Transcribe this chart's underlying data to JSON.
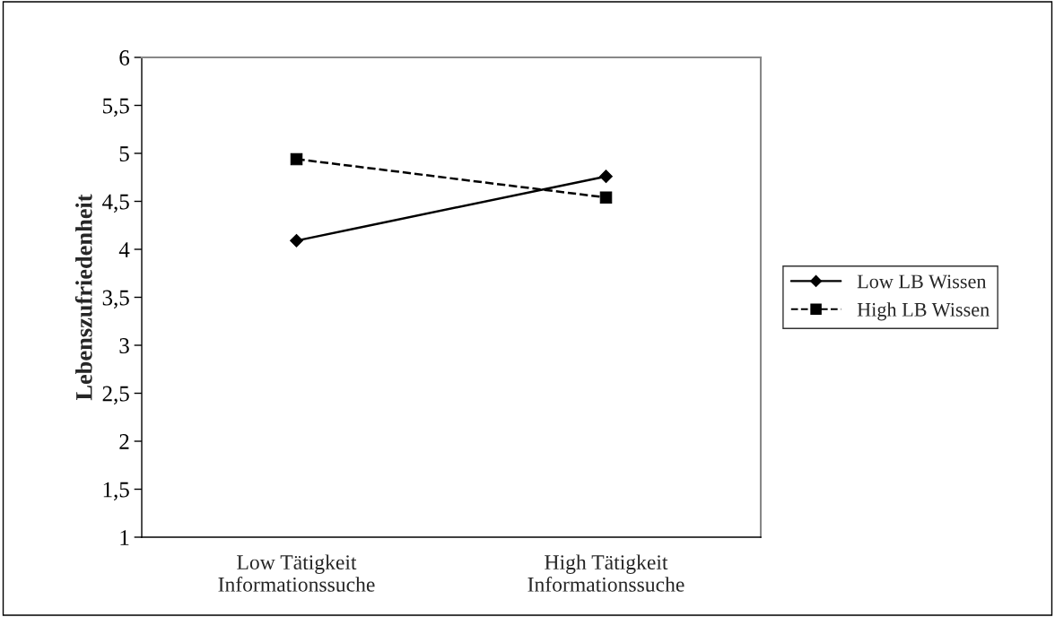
{
  "chart_data": {
    "type": "line",
    "ylabel": "Lebenszufriedenheit",
    "categories": [
      "Low Tätigkeit\nInformationssuche",
      "High Tätigkeit\nInformationssuche"
    ],
    "series": [
      {
        "name": "Low LB Wissen",
        "color": "#000000",
        "values": [
          4.09,
          4.76
        ],
        "marker": "diamond",
        "line_style": "solid"
      },
      {
        "name": "High LB Wissen",
        "color": "#000000",
        "values": [
          4.94,
          4.54
        ],
        "marker": "square",
        "line_style": "dashed"
      }
    ],
    "ylim": [
      1,
      6
    ],
    "yticks": [
      1,
      {
        "value": 1.5,
        "label": "1,5"
      },
      2,
      {
        "value": 2.5,
        "label": "2,5"
      },
      3,
      {
        "value": 3.5,
        "label": "3,5"
      },
      4,
      {
        "value": 4.5,
        "label": "4,5"
      },
      5,
      {
        "value": 5.5,
        "label": "5,5"
      },
      6
    ],
    "grid": false,
    "legend": "right"
  }
}
